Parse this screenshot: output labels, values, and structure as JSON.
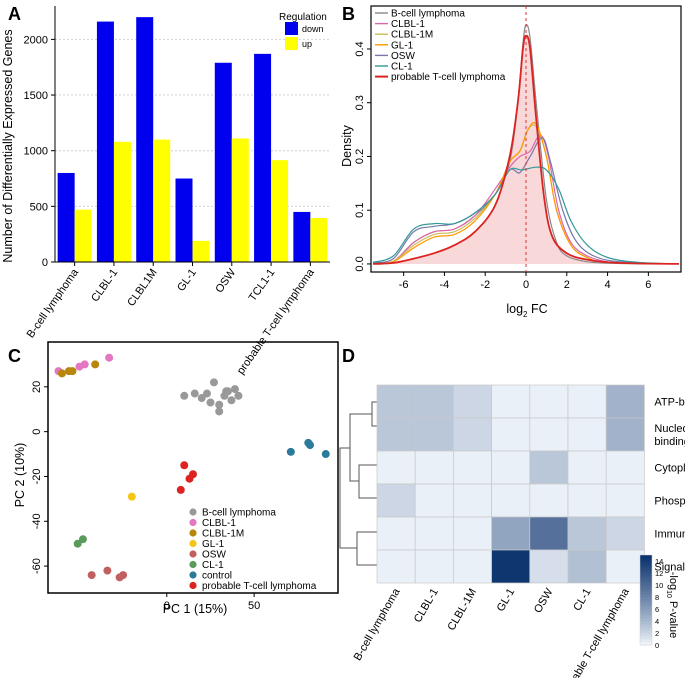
{
  "panelA": {
    "letter": "A",
    "chart_data": {
      "type": "bar",
      "title": "",
      "xlabel": "",
      "ylabel": "Number of Differentially Expressed Genes",
      "ylim": [
        0,
        2300
      ],
      "yticks": [
        0,
        500,
        1000,
        1500,
        2000
      ],
      "categories": [
        "B-cell lymphoma",
        "CLBL-1",
        "CLBL1M",
        "GL-1",
        "OSW",
        "TCL1-1",
        "probable T-cell lymphoma"
      ],
      "legend_title": "Regulation",
      "series": [
        {
          "name": "down",
          "color": "#0000ee",
          "values": [
            800,
            2160,
            2200,
            750,
            1790,
            1870,
            450
          ]
        },
        {
          "name": "up",
          "color": "#ffff00",
          "values": [
            470,
            1080,
            1100,
            190,
            1110,
            915,
            395
          ]
        }
      ]
    }
  },
  "panelB": {
    "letter": "B",
    "chart_data": {
      "type": "line",
      "xlabel_main": "log",
      "xlabel_sub": "2",
      "xlabel_tail": " FC",
      "ylabel": "Density",
      "xlim": [
        -7.6,
        7.6
      ],
      "ylim": [
        -0.015,
        0.48
      ],
      "xticks": [
        -6,
        -4,
        -2,
        0,
        2,
        4,
        6
      ],
      "yticks": [
        0.0,
        0.1,
        0.2,
        0.3,
        0.4
      ],
      "ytick_labels": [
        "0.0",
        "0.1",
        "0.2",
        "0.3",
        "0.4"
      ],
      "vline_x": 0,
      "series": [
        {
          "name": "B-cell lymphoma",
          "color": "#888888",
          "fill": false,
          "points": [
            [
              -7.5,
              0.001
            ],
            [
              -6.5,
              0.005
            ],
            [
              -5.5,
              0.04
            ],
            [
              -4.5,
              0.06
            ],
            [
              -3.5,
              0.065
            ],
            [
              -2.5,
              0.09
            ],
            [
              -1.5,
              0.13
            ],
            [
              -0.8,
              0.19
            ],
            [
              -0.4,
              0.3
            ],
            [
              -0.15,
              0.41
            ],
            [
              0,
              0.445
            ],
            [
              0.2,
              0.42
            ],
            [
              0.5,
              0.3
            ],
            [
              1,
              0.12
            ],
            [
              1.5,
              0.04
            ],
            [
              2,
              0.015
            ],
            [
              3,
              0.004
            ],
            [
              4.5,
              0.001
            ],
            [
              7.5,
              0
            ]
          ]
        },
        {
          "name": "CLBL-1",
          "color": "#dd66aa",
          "fill": false,
          "points": [
            [
              -7.5,
              0.001
            ],
            [
              -6.5,
              0.005
            ],
            [
              -5.5,
              0.04
            ],
            [
              -4.5,
              0.06
            ],
            [
              -3.5,
              0.065
            ],
            [
              -2.5,
              0.09
            ],
            [
              -1.5,
              0.14
            ],
            [
              -0.8,
              0.18
            ],
            [
              -0.3,
              0.2
            ],
            [
              0.2,
              0.21
            ],
            [
              0.7,
              0.24
            ],
            [
              1.1,
              0.2
            ],
            [
              1.6,
              0.1
            ],
            [
              2.2,
              0.04
            ],
            [
              3,
              0.015
            ],
            [
              4,
              0.004
            ],
            [
              5.5,
              0.001
            ],
            [
              7.5,
              0
            ]
          ]
        },
        {
          "name": "CLBL-1M",
          "color": "#ccbb55",
          "fill": false,
          "points": [
            [
              -7.5,
              0.001
            ],
            [
              -6.5,
              0.005
            ],
            [
              -5.5,
              0.035
            ],
            [
              -4.5,
              0.055
            ],
            [
              -3.5,
              0.06
            ],
            [
              -2.5,
              0.085
            ],
            [
              -1.5,
              0.13
            ],
            [
              -0.8,
              0.19
            ],
            [
              -0.3,
              0.21
            ],
            [
              0.1,
              0.25
            ],
            [
              0.5,
              0.255
            ],
            [
              1,
              0.2
            ],
            [
              1.5,
              0.1
            ],
            [
              2.2,
              0.035
            ],
            [
              3,
              0.012
            ],
            [
              4,
              0.003
            ],
            [
              7.5,
              0
            ]
          ]
        },
        {
          "name": "GL-1",
          "color": "#ff9900",
          "fill": false,
          "points": [
            [
              -7.5,
              0.001
            ],
            [
              -6.5,
              0.004
            ],
            [
              -5.5,
              0.03
            ],
            [
              -4.5,
              0.05
            ],
            [
              -3.5,
              0.055
            ],
            [
              -2.5,
              0.08
            ],
            [
              -1.5,
              0.13
            ],
            [
              -0.8,
              0.19
            ],
            [
              -0.3,
              0.21
            ],
            [
              0.1,
              0.25
            ],
            [
              0.5,
              0.26
            ],
            [
              1,
              0.2
            ],
            [
              1.5,
              0.1
            ],
            [
              2.2,
              0.035
            ],
            [
              3,
              0.012
            ],
            [
              4,
              0.003
            ],
            [
              7.5,
              0
            ]
          ]
        },
        {
          "name": "OSW",
          "color": "#7777aa",
          "fill": false,
          "points": [
            [
              -7.5,
              0.002
            ],
            [
              -6.5,
              0.01
            ],
            [
              -5.5,
              0.06
            ],
            [
              -4.5,
              0.07
            ],
            [
              -3.5,
              0.075
            ],
            [
              -2.5,
              0.095
            ],
            [
              -1.5,
              0.13
            ],
            [
              -0.8,
              0.175
            ],
            [
              -0.3,
              0.17
            ],
            [
              0.2,
              0.2
            ],
            [
              0.8,
              0.235
            ],
            [
              1.2,
              0.19
            ],
            [
              1.8,
              0.1
            ],
            [
              2.5,
              0.04
            ],
            [
              3.5,
              0.012
            ],
            [
              5,
              0.003
            ],
            [
              7.5,
              0
            ]
          ]
        },
        {
          "name": "CL-1",
          "color": "#339999",
          "fill": false,
          "points": [
            [
              -7.5,
              0.003
            ],
            [
              -6.5,
              0.015
            ],
            [
              -5.5,
              0.065
            ],
            [
              -4.5,
              0.075
            ],
            [
              -3.5,
              0.075
            ],
            [
              -2.5,
              0.095
            ],
            [
              -1.5,
              0.13
            ],
            [
              -0.8,
              0.175
            ],
            [
              -0.2,
              0.175
            ],
            [
              0.5,
              0.18
            ],
            [
              1,
              0.175
            ],
            [
              1.6,
              0.14
            ],
            [
              2.2,
              0.08
            ],
            [
              3,
              0.035
            ],
            [
              4,
              0.012
            ],
            [
              5.5,
              0.003
            ],
            [
              7.5,
              0
            ]
          ]
        },
        {
          "name": "probable T-cell lymphoma",
          "color": "#dd2222",
          "fill": true,
          "points": [
            [
              -7.5,
              0
            ],
            [
              -6.5,
              0.002
            ],
            [
              -5.5,
              0.01
            ],
            [
              -4.5,
              0.02
            ],
            [
              -3.5,
              0.035
            ],
            [
              -2.5,
              0.06
            ],
            [
              -1.5,
              0.11
            ],
            [
              -0.8,
              0.2
            ],
            [
              -0.4,
              0.3
            ],
            [
              -0.15,
              0.4
            ],
            [
              0,
              0.425
            ],
            [
              0.2,
              0.4
            ],
            [
              0.5,
              0.27
            ],
            [
              0.9,
              0.12
            ],
            [
              1.3,
              0.05
            ],
            [
              2,
              0.02
            ],
            [
              3,
              0.008
            ],
            [
              4.5,
              0.002
            ],
            [
              7.5,
              0
            ]
          ]
        }
      ]
    }
  },
  "panelC": {
    "letter": "C",
    "chart_data": {
      "type": "scatter",
      "xlabel": "PC 1 (15%)",
      "ylabel": "PC 2 (10%)",
      "xlim": [
        -68,
        98
      ],
      "ylim": [
        -72,
        40
      ],
      "xticks": [
        0,
        50
      ],
      "yticks": [
        20,
        0,
        -20,
        -40,
        -60
      ],
      "legend": [
        {
          "name": "B-cell lymphoma",
          "color": "#999999"
        },
        {
          "name": "CLBL-1",
          "color": "#e377c2"
        },
        {
          "name": "CLBL-1M",
          "color": "#b8860b"
        },
        {
          "name": "GL-1",
          "color": "#f5c518"
        },
        {
          "name": "OSW",
          "color": "#c06060"
        },
        {
          "name": "CL-1",
          "color": "#5a9a5a"
        },
        {
          "name": "control",
          "color": "#2a7a9a"
        },
        {
          "name": "probable T-cell lymphoma",
          "color": "#dd2222"
        }
      ],
      "points": [
        {
          "g": "B-cell lymphoma",
          "x": 10,
          "y": 16
        },
        {
          "g": "B-cell lymphoma",
          "x": 16,
          "y": 17
        },
        {
          "g": "B-cell lymphoma",
          "x": 20,
          "y": 15
        },
        {
          "g": "B-cell lymphoma",
          "x": 25,
          "y": 13
        },
        {
          "g": "B-cell lymphoma",
          "x": 23,
          "y": 17
        },
        {
          "g": "B-cell lymphoma",
          "x": 27,
          "y": 22
        },
        {
          "g": "B-cell lymphoma",
          "x": 30,
          "y": 12
        },
        {
          "g": "B-cell lymphoma",
          "x": 30,
          "y": 9
        },
        {
          "g": "B-cell lymphoma",
          "x": 33,
          "y": 16
        },
        {
          "g": "B-cell lymphoma",
          "x": 34,
          "y": 18
        },
        {
          "g": "B-cell lymphoma",
          "x": 37,
          "y": 14
        },
        {
          "g": "B-cell lymphoma",
          "x": 39,
          "y": 19
        },
        {
          "g": "B-cell lymphoma",
          "x": 41,
          "y": 16
        },
        {
          "g": "B-cell lymphoma",
          "x": 35,
          "y": 18
        },
        {
          "g": "CLBL-1",
          "x": -62,
          "y": 27
        },
        {
          "g": "CLBL-1",
          "x": -50,
          "y": 29
        },
        {
          "g": "CLBL-1",
          "x": -47,
          "y": 30
        },
        {
          "g": "CLBL-1",
          "x": -33,
          "y": 33
        },
        {
          "g": "CLBL-1M",
          "x": -60,
          "y": 26
        },
        {
          "g": "CLBL-1M",
          "x": -56,
          "y": 27
        },
        {
          "g": "CLBL-1M",
          "x": -54,
          "y": 27
        },
        {
          "g": "CLBL-1M",
          "x": -41,
          "y": 30
        },
        {
          "g": "GL-1",
          "x": -20,
          "y": -29
        },
        {
          "g": "OSW",
          "x": -43,
          "y": -64
        },
        {
          "g": "OSW",
          "x": -34,
          "y": -62
        },
        {
          "g": "OSW",
          "x": -27,
          "y": -65
        },
        {
          "g": "OSW",
          "x": -25,
          "y": -64
        },
        {
          "g": "CL-1",
          "x": -51,
          "y": -50
        },
        {
          "g": "CL-1",
          "x": -48,
          "y": -48
        },
        {
          "g": "control",
          "x": 71,
          "y": -9
        },
        {
          "g": "control",
          "x": 81,
          "y": -5
        },
        {
          "g": "control",
          "x": 82,
          "y": -6
        },
        {
          "g": "control",
          "x": 91,
          "y": -10
        },
        {
          "g": "probable T-cell lymphoma",
          "x": 10,
          "y": -15
        },
        {
          "g": "probable T-cell lymphoma",
          "x": 15,
          "y": -19
        },
        {
          "g": "probable T-cell lymphoma",
          "x": 13,
          "y": -21
        },
        {
          "g": "probable T-cell lymphoma",
          "x": 8,
          "y": -26
        }
      ]
    }
  },
  "panelD": {
    "letter": "D",
    "chart_data": {
      "type": "heatmap",
      "columns": [
        "B-cell lymphoma",
        "CLBL-1",
        "CLBL-1M",
        "GL-1",
        "OSW",
        "CL-1",
        "probable T-cell lymphoma"
      ],
      "rows": [
        "ATP-binding",
        "Nucleotide-binding",
        "Cytoplasm",
        "Phosphoprotein",
        "Immunity",
        "Signal"
      ],
      "row_label_lines": [
        [
          "ATP-binding"
        ],
        [
          "Nucleotide-",
          "binding"
        ],
        [
          "Cytoplasm"
        ],
        [
          "Phosphoprotein"
        ],
        [
          "Immunity"
        ],
        [
          "Signal"
        ]
      ],
      "values": [
        [
          3,
          3,
          2,
          0.5,
          0.5,
          0.5,
          4.5
        ],
        [
          3,
          3,
          2,
          0.5,
          0.5,
          0.5,
          4.5
        ],
        [
          0.5,
          0.5,
          0.5,
          0.5,
          3,
          0.5,
          0.5
        ],
        [
          2,
          0.5,
          0.5,
          0.5,
          0.5,
          0.5,
          0.5
        ],
        [
          0.5,
          0.5,
          0.5,
          5.5,
          9.5,
          3,
          2
        ],
        [
          0.5,
          0.5,
          0.5,
          14.5,
          1.5,
          3.5,
          0.5
        ]
      ],
      "colorbar_title_main": "-log",
      "colorbar_title_sub": "10",
      "colorbar_title_tail": " P-value",
      "colorbar_max": 15,
      "colorbar_ticks": [
        0,
        2,
        4,
        6,
        8,
        10,
        12,
        14
      ]
    }
  }
}
